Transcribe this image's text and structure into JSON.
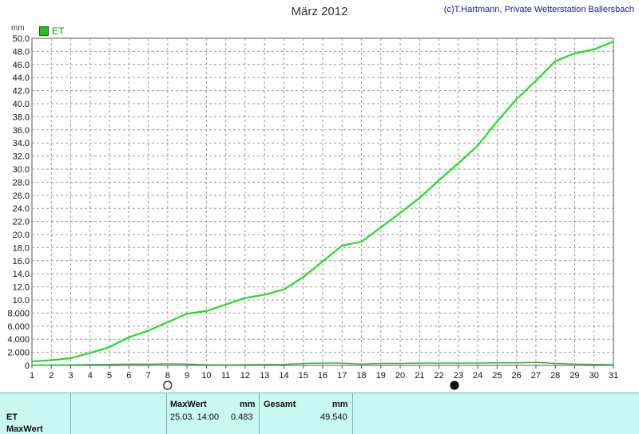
{
  "header": {
    "title": "März 2012",
    "credit": "(c)T.Hartmann, Private Wetterstation Ballersbach",
    "unit": "mm",
    "legend_label": "ET"
  },
  "colors": {
    "series": "#22dd22",
    "minor_series": "#2bb04a",
    "grid": "#9a9a9a",
    "table_bg": "#c9f7f2"
  },
  "chart_data": {
    "type": "line",
    "title": "März 2012",
    "ylabel": "mm",
    "xlim": [
      1,
      31
    ],
    "ylim": [
      0,
      50
    ],
    "grid": true,
    "legend_position": "top-left",
    "x_ticks": [
      "1",
      "2",
      "3",
      "4",
      "5",
      "6",
      "7",
      "8",
      "9",
      "10",
      "11",
      "12",
      "13",
      "14",
      "15",
      "16",
      "17",
      "18",
      "19",
      "20",
      "21",
      "22",
      "23",
      "24",
      "25",
      "26",
      "27",
      "28",
      "29",
      "30",
      "31"
    ],
    "y_ticks": [
      "0",
      "2.000",
      "4.000",
      "6.000",
      "8.000",
      "10.0",
      "12.0",
      "14.0",
      "16.0",
      "18.0",
      "20.0",
      "22.0",
      "24.0",
      "26.0",
      "28.0",
      "30.0",
      "32.0",
      "34.0",
      "36.0",
      "38.0",
      "40.0",
      "42.0",
      "44.0",
      "46.0",
      "48.0",
      "50.0"
    ],
    "series": [
      {
        "name": "ET",
        "x": [
          1,
          2,
          3,
          4,
          5,
          6,
          7,
          8,
          9,
          10,
          11,
          12,
          13,
          14,
          15,
          16,
          17,
          18,
          19,
          20,
          21,
          22,
          23,
          24,
          25,
          26,
          27,
          28,
          29,
          30,
          31
        ],
        "values": [
          0.6,
          0.8,
          1.1,
          1.9,
          2.8,
          4.3,
          5.3,
          6.6,
          7.9,
          8.3,
          9.3,
          10.3,
          10.8,
          11.6,
          13.5,
          15.9,
          18.3,
          18.9,
          21.1,
          23.3,
          25.6,
          28.3,
          30.9,
          33.6,
          37.3,
          40.7,
          43.5,
          46.5,
          47.7,
          48.3,
          49.5
        ]
      },
      {
        "x": [
          1,
          2,
          3,
          4,
          5,
          6,
          7,
          8,
          9,
          10,
          11,
          12,
          13,
          14,
          15,
          16,
          17,
          18,
          19,
          20,
          21,
          22,
          23,
          24,
          25,
          26,
          27,
          28,
          29,
          30,
          31
        ],
        "values": [
          0.05,
          0.05,
          0.08,
          0.12,
          0.15,
          0.2,
          0.18,
          0.25,
          0.2,
          0.1,
          0.08,
          0.1,
          0.12,
          0.15,
          0.3,
          0.35,
          0.35,
          0.2,
          0.3,
          0.3,
          0.35,
          0.35,
          0.35,
          0.35,
          0.4,
          0.4,
          0.45,
          0.3,
          0.2,
          0.15,
          0.1
        ]
      }
    ],
    "moon_markers": [
      {
        "day": 8,
        "phase": "full"
      },
      {
        "day": 22.8,
        "phase": "new"
      }
    ]
  },
  "table": {
    "maxwert_label": "MaxWert",
    "unit_mm": "mm",
    "gesamt_label": "Gesamt",
    "row_et_label": "ET",
    "row_maxwert_label": "MaxWert",
    "et_max_date": "25.03. 14:00",
    "et_max_value": "0.483",
    "et_total": "49.540"
  }
}
